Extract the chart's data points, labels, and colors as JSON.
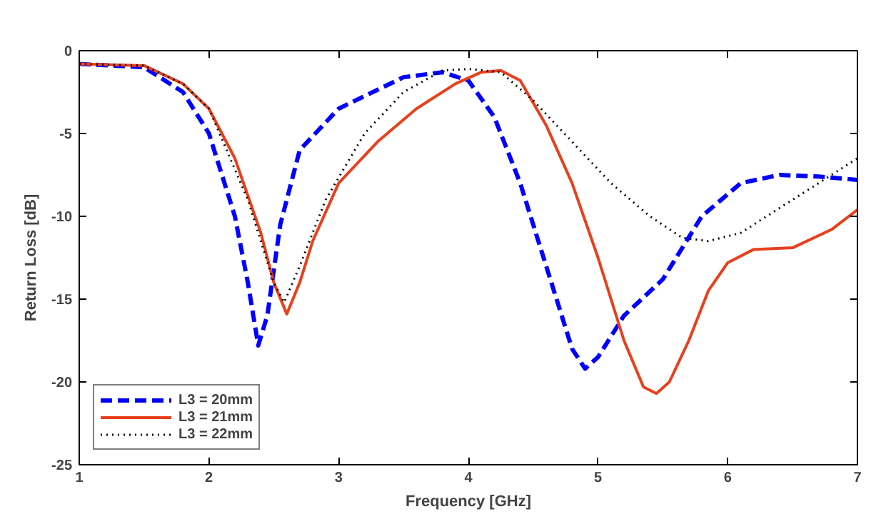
{
  "chart_data": {
    "type": "line",
    "xlabel": "Frequency [GHz]",
    "ylabel": "Return Loss [dB]",
    "xlim": [
      1,
      7
    ],
    "ylim": [
      -25,
      0
    ],
    "xticks": [
      1,
      2,
      3,
      4,
      5,
      6,
      7
    ],
    "yticks": [
      -25,
      -20,
      -15,
      -10,
      -5,
      0
    ],
    "grid": false,
    "legend": "bottom left",
    "marker": "none",
    "series": [
      {
        "name": "L3 = 20mm",
        "color": "#0000ff",
        "line_style": "dashed",
        "x": [
          1,
          1.5,
          1.8,
          2.0,
          2.2,
          2.3,
          2.38,
          2.45,
          2.55,
          2.7,
          3.0,
          3.5,
          3.8,
          4.0,
          4.2,
          4.4,
          4.6,
          4.8,
          4.9,
          5.0,
          5.2,
          5.5,
          5.8,
          6.1,
          6.4,
          6.7,
          7.0
        ],
        "values": [
          -0.8,
          -1.0,
          -2.5,
          -5,
          -10,
          -14,
          -17.8,
          -16,
          -10.5,
          -6,
          -3.5,
          -1.6,
          -1.3,
          -1.8,
          -4,
          -8,
          -13,
          -18,
          -19.2,
          -18.5,
          -16,
          -13.8,
          -10,
          -8,
          -7.5,
          -7.6,
          -7.8
        ]
      },
      {
        "name": "L3 = 21mm",
        "color": "#e8401c",
        "line_style": "solid",
        "x": [
          1,
          1.5,
          1.8,
          2.0,
          2.2,
          2.4,
          2.5,
          2.6,
          2.7,
          2.8,
          3.0,
          3.3,
          3.6,
          3.9,
          4.1,
          4.25,
          4.4,
          4.6,
          4.8,
          5.0,
          5.2,
          5.35,
          5.45,
          5.55,
          5.7,
          5.85,
          6.0,
          6.2,
          6.5,
          6.8,
          7.0
        ],
        "values": [
          -0.8,
          -0.9,
          -2,
          -3.5,
          -6.5,
          -11,
          -14,
          -15.9,
          -14,
          -11.5,
          -8,
          -5.5,
          -3.5,
          -2,
          -1.3,
          -1.2,
          -1.8,
          -4.5,
          -8,
          -12.5,
          -17.5,
          -20.3,
          -20.7,
          -20,
          -17.5,
          -14.5,
          -12.8,
          -12,
          -11.9,
          -10.8,
          -9.6
        ]
      },
      {
        "name": "L3 = 22mm",
        "color": "#000000",
        "line_style": "dotted",
        "x": [
          1,
          1.5,
          1.8,
          2.0,
          2.3,
          2.5,
          2.58,
          2.7,
          2.9,
          3.2,
          3.5,
          3.8,
          4.0,
          4.25,
          4.5,
          4.8,
          5.1,
          5.4,
          5.65,
          5.85,
          6.1,
          6.4,
          6.7,
          7.0
        ],
        "values": [
          -0.8,
          -0.9,
          -2,
          -3.5,
          -9,
          -14,
          -15.2,
          -13,
          -9,
          -5,
          -2.5,
          -1.2,
          -1.1,
          -1.3,
          -3,
          -5.5,
          -8,
          -10,
          -11.3,
          -11.5,
          -11,
          -9.5,
          -8,
          -6.5
        ]
      }
    ]
  }
}
